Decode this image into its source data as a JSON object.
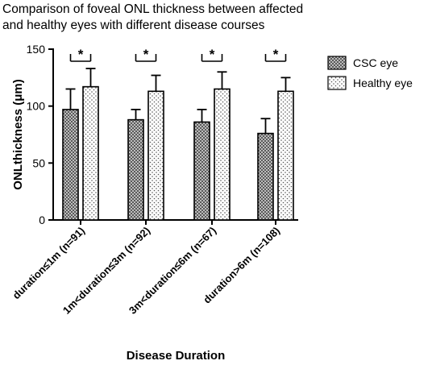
{
  "chart_data": {
    "type": "bar",
    "title_lines": [
      "Comparison of foveal ONL thickness between affected",
      "and healthy eyes with different disease courses"
    ],
    "xlabel": "Disease Duration",
    "ylabel": "ONLthickness (μm)",
    "ylim": [
      0,
      150
    ],
    "yticks": [
      "0",
      "50",
      "100",
      "150"
    ],
    "categories": [
      "duration≤1m (n=91)",
      "1m<duration≤3m (n=92)",
      "3m<duration≤6m (n=67)",
      "duration>6m (n=108)"
    ],
    "series": [
      {
        "name": "CSC eye",
        "pattern": "checker",
        "values": [
          97,
          88,
          86,
          76
        ],
        "error_plus": [
          18,
          9,
          11,
          13
        ]
      },
      {
        "name": "Healthy eye",
        "pattern": "dots",
        "values": [
          117,
          113,
          115,
          113
        ],
        "error_plus": [
          16,
          14,
          15,
          12
        ]
      }
    ],
    "significance_label": "*",
    "legend_position": "right",
    "colors": {
      "ink": "#000000",
      "background": "#ffffff"
    }
  }
}
